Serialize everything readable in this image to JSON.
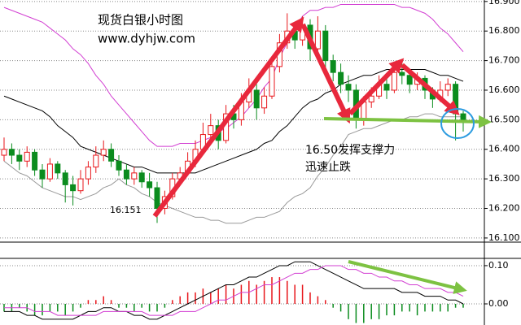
{
  "chart_data": [
    {
      "type": "candlestick",
      "title": "现货白银小时图",
      "subtitle": "www.dyhjw.com",
      "open": [
        16.38,
        16.4,
        16.38,
        16.36,
        16.39,
        16.33,
        16.3,
        16.35,
        16.32,
        16.28,
        16.26,
        16.3,
        16.34,
        16.38,
        16.4,
        16.36,
        16.33,
        16.3,
        16.32,
        16.29,
        16.27,
        16.2,
        16.24,
        16.3,
        16.32,
        16.36,
        16.4,
        16.45,
        16.48,
        16.43,
        16.52,
        16.5,
        16.56,
        16.6,
        16.54,
        16.58,
        16.68,
        16.76,
        16.8,
        16.77,
        16.82,
        16.74,
        16.8,
        16.7,
        16.66,
        16.62,
        16.6,
        16.5,
        16.56,
        16.58,
        16.62,
        16.6,
        16.66,
        16.65,
        16.62,
        16.64,
        16.6,
        16.57,
        16.6,
        16.62,
        16.52
      ],
      "high": [
        16.44,
        16.42,
        16.4,
        16.41,
        16.4,
        16.35,
        16.37,
        16.36,
        16.33,
        16.31,
        16.33,
        16.36,
        16.41,
        16.43,
        16.42,
        16.38,
        16.35,
        16.34,
        16.33,
        16.32,
        16.29,
        16.26,
        16.32,
        16.34,
        16.39,
        16.43,
        16.49,
        16.52,
        16.5,
        16.55,
        16.55,
        16.59,
        16.64,
        16.62,
        16.61,
        16.71,
        16.79,
        16.86,
        16.82,
        16.85,
        16.84,
        16.85,
        16.82,
        16.72,
        16.69,
        16.65,
        16.62,
        16.58,
        16.61,
        16.65,
        16.64,
        16.69,
        16.69,
        16.67,
        16.66,
        16.65,
        16.61,
        16.63,
        16.64,
        16.63,
        16.53
      ],
      "low": [
        16.36,
        16.35,
        16.33,
        16.34,
        16.31,
        16.27,
        16.29,
        16.3,
        16.22,
        16.21,
        16.25,
        16.28,
        16.32,
        16.36,
        16.34,
        16.31,
        16.28,
        16.28,
        16.27,
        16.24,
        16.151,
        16.18,
        16.23,
        16.28,
        16.31,
        16.34,
        16.38,
        16.43,
        16.4,
        16.42,
        16.47,
        16.48,
        16.54,
        16.5,
        16.52,
        16.57,
        16.66,
        16.74,
        16.74,
        16.75,
        16.7,
        16.72,
        16.67,
        16.63,
        16.59,
        16.56,
        16.47,
        16.48,
        16.54,
        16.57,
        16.57,
        16.59,
        16.62,
        16.59,
        16.6,
        16.57,
        16.54,
        16.56,
        16.58,
        16.43,
        16.46
      ],
      "close": [
        16.4,
        16.38,
        16.36,
        16.39,
        16.33,
        16.3,
        16.35,
        16.32,
        16.28,
        16.26,
        16.3,
        16.34,
        16.38,
        16.4,
        16.36,
        16.33,
        16.3,
        16.32,
        16.29,
        16.27,
        16.2,
        16.24,
        16.3,
        16.32,
        16.36,
        16.4,
        16.45,
        16.48,
        16.43,
        16.52,
        16.5,
        16.56,
        16.6,
        16.54,
        16.58,
        16.68,
        16.76,
        16.8,
        16.77,
        16.82,
        16.74,
        16.8,
        16.7,
        16.66,
        16.62,
        16.6,
        16.5,
        16.56,
        16.58,
        16.62,
        16.6,
        16.66,
        16.65,
        16.62,
        16.64,
        16.6,
        16.57,
        16.6,
        16.62,
        16.52,
        16.5
      ],
      "up_color": "#e8161b",
      "down_color": "#0b8c1e",
      "series": [
        {
          "color": "#d23fd2",
          "values": [
            16.88,
            16.87,
            16.86,
            16.85,
            16.84,
            16.83,
            16.81,
            16.79,
            16.77,
            16.74,
            16.72,
            16.69,
            16.65,
            16.62,
            16.58,
            16.55,
            16.52,
            16.49,
            16.46,
            16.43,
            16.41,
            16.41,
            16.41,
            16.42,
            16.42,
            16.42,
            16.43,
            16.44,
            16.46,
            16.47,
            16.49,
            16.51,
            16.54,
            16.57,
            16.61,
            16.64,
            16.71,
            16.76,
            16.81,
            16.85,
            16.87,
            16.87,
            16.88,
            16.88,
            16.89,
            16.89,
            16.89,
            16.89,
            16.89,
            16.89,
            16.89,
            16.89,
            16.88,
            16.88,
            16.87,
            16.86,
            16.84,
            16.81,
            16.79,
            16.76,
            16.73
          ]
        },
        {
          "color": "#000000",
          "values": [
            16.58,
            16.57,
            16.56,
            16.55,
            16.54,
            16.53,
            16.51,
            16.48,
            16.46,
            16.44,
            16.41,
            16.4,
            16.39,
            16.38,
            16.37,
            16.36,
            16.35,
            16.34,
            16.34,
            16.33,
            16.32,
            16.32,
            16.32,
            16.32,
            16.32,
            16.32,
            16.33,
            16.34,
            16.35,
            16.36,
            16.37,
            16.38,
            16.39,
            16.4,
            16.42,
            16.43,
            16.46,
            16.48,
            16.51,
            16.54,
            16.56,
            16.57,
            16.59,
            16.6,
            16.62,
            16.63,
            16.64,
            16.65,
            16.65,
            16.66,
            16.67,
            16.67,
            16.67,
            16.67,
            16.67,
            16.67,
            16.66,
            16.65,
            16.65,
            16.64,
            16.63
          ]
        },
        {
          "color": "#999999",
          "values": [
            16.36,
            16.34,
            16.32,
            16.31,
            16.29,
            16.27,
            16.26,
            16.25,
            16.24,
            16.24,
            16.23,
            16.24,
            16.25,
            16.27,
            16.28,
            16.3,
            16.28,
            16.27,
            16.25,
            16.24,
            16.22,
            16.21,
            16.2,
            16.19,
            16.18,
            16.17,
            16.17,
            16.16,
            16.16,
            16.15,
            16.15,
            16.15,
            16.16,
            16.17,
            16.17,
            16.18,
            16.19,
            16.22,
            16.24,
            16.25,
            16.27,
            16.31,
            16.34,
            16.38,
            16.41,
            16.45,
            16.46,
            16.47,
            16.47,
            16.48,
            16.49,
            16.5,
            16.5,
            16.51,
            16.51,
            16.52,
            16.52,
            16.51,
            16.51,
            16.51,
            16.51
          ]
        }
      ],
      "ylim": [
        16.086,
        16.905
      ],
      "yticks": [
        {
          "value": 16.1,
          "label": "16.100"
        },
        {
          "value": 16.2,
          "label": "16.200"
        },
        {
          "value": 16.3,
          "label": "16.300"
        },
        {
          "value": 16.4,
          "label": "16.400"
        },
        {
          "value": 16.5,
          "label": "16.500"
        },
        {
          "value": 16.6,
          "label": "16.600"
        },
        {
          "value": 16.7,
          "label": "16.700"
        },
        {
          "value": 16.8,
          "label": "16.800"
        },
        {
          "value": 16.9,
          "label": "16.900"
        }
      ],
      "grid": true,
      "annotations": [
        "16.50发挥支撑力",
        "迅速止跌"
      ],
      "low_label": 16.151
    },
    {
      "type": "macd",
      "values": [
        -0.02,
        -0.02,
        -0.01,
        -0.02,
        -0.03,
        -0.03,
        -0.02,
        -0.02,
        -0.03,
        -0.02,
        -0.01,
        0.01,
        0.01,
        0.02,
        0.01,
        -0.01,
        -0.01,
        -0.02,
        -0.01,
        -0.02,
        -0.02,
        -0.01,
        0.01,
        0.02,
        0.03,
        0.03,
        0.04,
        0.03,
        0.04,
        0.05,
        0.04,
        0.05,
        0.06,
        0.05,
        0.06,
        0.07,
        0.07,
        0.06,
        0.05,
        0.05,
        0.03,
        0.02,
        0.01,
        -0.01,
        -0.02,
        -0.04,
        -0.05,
        -0.05,
        -0.04,
        -0.04,
        -0.03,
        -0.03,
        -0.02,
        -0.02,
        -0.03,
        -0.02,
        -0.02,
        -0.02,
        -0.02,
        -0.01,
        -0.01
      ],
      "up_color": "#e8161b",
      "down_color": "#0b8c1e",
      "series": [
        {
          "color": "#000000",
          "values": [
            -0.02,
            -0.02,
            -0.02,
            -0.03,
            -0.03,
            -0.04,
            -0.04,
            -0.04,
            -0.04,
            -0.04,
            -0.03,
            -0.02,
            -0.02,
            -0.01,
            -0.01,
            -0.02,
            -0.02,
            -0.03,
            -0.03,
            -0.04,
            -0.04,
            -0.03,
            -0.02,
            -0.01,
            0.0,
            0.01,
            0.02,
            0.03,
            0.04,
            0.05,
            0.05,
            0.06,
            0.07,
            0.07,
            0.08,
            0.09,
            0.1,
            0.1,
            0.11,
            0.11,
            0.11,
            0.1,
            0.09,
            0.08,
            0.07,
            0.06,
            0.05,
            0.04,
            0.04,
            0.04,
            0.04,
            0.04,
            0.03,
            0.03,
            0.03,
            0.02,
            0.02,
            0.02,
            0.01,
            0.01,
            0.0
          ]
        },
        {
          "color": "#d23fd2",
          "values": [
            -0.01,
            -0.01,
            -0.01,
            -0.01,
            -0.02,
            -0.02,
            -0.02,
            -0.03,
            -0.03,
            -0.03,
            -0.03,
            -0.03,
            -0.03,
            -0.02,
            -0.02,
            -0.02,
            -0.02,
            -0.02,
            -0.02,
            -0.03,
            -0.03,
            -0.03,
            -0.03,
            -0.02,
            -0.02,
            -0.02,
            -0.01,
            0.0,
            0.01,
            0.01,
            0.02,
            0.03,
            0.03,
            0.04,
            0.05,
            0.05,
            0.06,
            0.07,
            0.08,
            0.08,
            0.09,
            0.09,
            0.1,
            0.1,
            0.1,
            0.09,
            0.09,
            0.08,
            0.08,
            0.07,
            0.07,
            0.06,
            0.06,
            0.05,
            0.05,
            0.04,
            0.04,
            0.04,
            0.03,
            0.03,
            0.02
          ]
        }
      ],
      "ylim": [
        -0.051,
        0.119
      ],
      "yticks": [
        {
          "value": 0,
          "label": "0.00"
        },
        {
          "value": 0.1,
          "label": "0.10"
        }
      ],
      "grid": true
    }
  ]
}
